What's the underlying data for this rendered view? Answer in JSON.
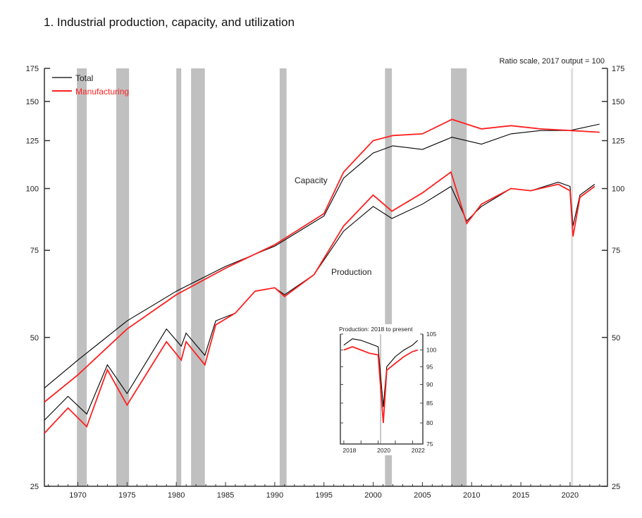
{
  "chart_data": {
    "type": "line",
    "title": "1.  Industrial production, capacity, and utilization",
    "note": "Ratio scale, 2017 output = 100",
    "yscale": "log",
    "ylim": [
      25,
      175
    ],
    "xlim": [
      1966.6,
      2023.8
    ],
    "yticks": [
      25,
      50,
      75,
      100,
      125,
      150,
      175
    ],
    "xticks": [
      1970,
      1975,
      1980,
      1985,
      1990,
      1995,
      2000,
      2005,
      2010,
      2015,
      2020
    ],
    "legend": {
      "placement": "top-left",
      "entries": [
        {
          "label": "Total",
          "color": "#000000"
        },
        {
          "label": "Manufacturing",
          "color": "#ff2020"
        }
      ]
    },
    "annotations": [
      "Capacity",
      "Production"
    ],
    "recessions": [
      [
        1969.9,
        1970.9
      ],
      [
        1973.9,
        1975.2
      ],
      [
        1980.0,
        1980.5
      ],
      [
        1981.5,
        1982.9
      ],
      [
        1990.5,
        1991.2
      ],
      [
        2001.2,
        2001.9
      ],
      [
        2007.9,
        2009.5
      ],
      [
        2020.1,
        2020.3
      ]
    ],
    "series": [
      {
        "name": "Total capacity",
        "color": "#000000",
        "x": [
          1966.6,
          1970,
          1975,
          1980,
          1985,
          1990,
          1995,
          1997,
          2000,
          2002,
          2005,
          2008,
          2011,
          2014,
          2017,
          2020,
          2023
        ],
        "values": [
          39.5,
          45,
          54,
          62,
          69.6,
          76.5,
          88,
          105,
          118,
          122,
          120,
          127,
          123,
          129,
          131,
          131,
          135
        ]
      },
      {
        "name": "Manufacturing capacity",
        "color": "#ff2020",
        "x": [
          1966.6,
          1970,
          1975,
          1980,
          1985,
          1990,
          1995,
          1997,
          2000,
          2002,
          2005,
          2008,
          2011,
          2014,
          2017,
          2020,
          2023
        ],
        "values": [
          37,
          42,
          52,
          61,
          69,
          77,
          89,
          108,
          125,
          128,
          129,
          138,
          132,
          134,
          132,
          131,
          130
        ]
      },
      {
        "name": "Total production",
        "color": "#000000",
        "x": [
          1966.6,
          1969,
          1970.9,
          1973,
          1975,
          1979,
          1980.5,
          1981,
          1982.9,
          1984,
          1986,
          1988,
          1990,
          1991,
          1994,
          1997,
          2000,
          2001.9,
          2005,
          2007.9,
          2009.5,
          2011,
          2014,
          2016,
          2018.8,
          2020.0,
          2020.3,
          2021,
          2022.5
        ],
        "values": [
          34,
          38,
          35,
          44,
          38.5,
          52,
          48,
          51,
          46,
          54,
          56,
          62,
          63,
          61,
          67,
          82,
          92,
          87,
          93,
          101,
          86,
          92,
          100,
          99,
          103,
          101,
          84,
          97,
          102
        ]
      },
      {
        "name": "Manufacturing production",
        "color": "#ff2020",
        "x": [
          1966.6,
          1969,
          1970.9,
          1973,
          1975,
          1979,
          1980.5,
          1981,
          1982.9,
          1984,
          1986,
          1988,
          1990,
          1991,
          1994,
          1997,
          2000,
          2001.9,
          2005,
          2007.9,
          2009.5,
          2011,
          2014,
          2016,
          2018.8,
          2020.0,
          2020.3,
          2021,
          2022.5
        ],
        "values": [
          32,
          36,
          33,
          43,
          36.5,
          49,
          45,
          49,
          44,
          53,
          56,
          62,
          63,
          60.5,
          67,
          84,
          97,
          90,
          98,
          108,
          85,
          93,
          100,
          99,
          102,
          99,
          80,
          96,
          101
        ]
      }
    ],
    "inset": {
      "title": "Production: 2018 to present",
      "ylim": [
        75,
        105
      ],
      "yticks": [
        75,
        80,
        85,
        90,
        95,
        100,
        105
      ],
      "xlim": [
        2017.8,
        2022.6
      ],
      "xticks": [
        2018,
        2020,
        2022
      ],
      "series": [
        {
          "name": "Total",
          "color": "#000000",
          "x": [
            2018.0,
            2018.5,
            2019,
            2019.5,
            2020.0,
            2020.3,
            2020.5,
            2021,
            2021.5,
            2022,
            2022.3
          ],
          "values": [
            101.5,
            103.5,
            103,
            102,
            101,
            84,
            95,
            98,
            100,
            101.5,
            103
          ]
        },
        {
          "name": "Manufacturing",
          "color": "#ff2020",
          "x": [
            2018.0,
            2018.5,
            2019,
            2019.5,
            2020.0,
            2020.3,
            2020.5,
            2021,
            2021.5,
            2022,
            2022.3
          ],
          "values": [
            100,
            101,
            100,
            99,
            98.5,
            80,
            94,
            96,
            98,
            99.5,
            100
          ]
        }
      ]
    }
  }
}
